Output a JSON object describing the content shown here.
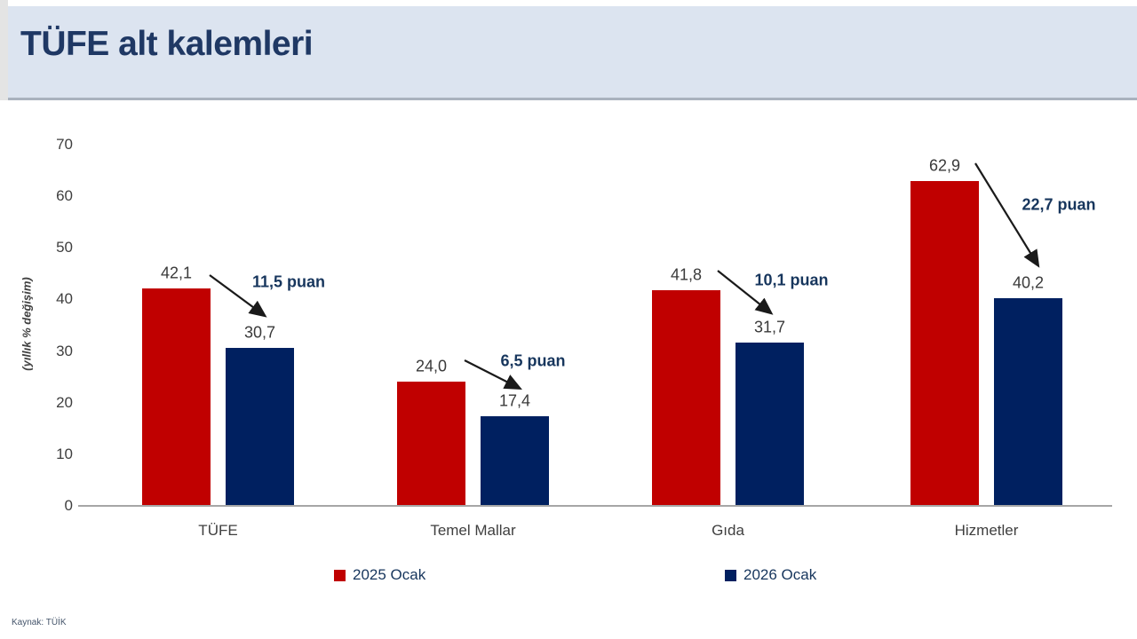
{
  "header": {
    "title": "TÜFE alt kalemleri"
  },
  "source_note": "Kaynak: TÜİK",
  "colors": {
    "series_2025": "#c00000",
    "series_2026": "#002060",
    "header_bg": "#dce4f0",
    "title_text": "#1f3864",
    "axis_line": "#a6a6a6",
    "arrow": "#1a1a1a"
  },
  "legend": [
    {
      "label": "2025 Ocak",
      "color": "#c00000"
    },
    {
      "label": "2026 Ocak",
      "color": "#002060"
    }
  ],
  "chart_data": {
    "type": "bar",
    "title": "TÜFE alt kalemleri",
    "xlabel": "",
    "ylabel": "(yıllık % değişim)",
    "ylim": [
      0,
      70
    ],
    "yticks": [
      0,
      10,
      20,
      30,
      40,
      50,
      60,
      70
    ],
    "grid": false,
    "legend_position": "bottom",
    "categories": [
      "TÜFE",
      "Temel Mallar",
      "Gıda",
      "Hizmetler"
    ],
    "series": [
      {
        "name": "2025 Ocak",
        "color": "#c00000",
        "values": [
          42.1,
          24.0,
          41.8,
          62.9
        ],
        "labels": [
          "42,1",
          "24,0",
          "41,8",
          "62,9"
        ]
      },
      {
        "name": "2026 Ocak",
        "color": "#002060",
        "values": [
          30.7,
          17.4,
          31.7,
          40.2
        ],
        "labels": [
          "30,7",
          "17,4",
          "31,7",
          "40,2"
        ]
      }
    ],
    "annotations": [
      {
        "category": "TÜFE",
        "label": "11,5 puan"
      },
      {
        "category": "Temel Mallar",
        "label": "6,5 puan"
      },
      {
        "category": "Gıda",
        "label": "10,1 puan"
      },
      {
        "category": "Hizmetler",
        "label": "22,7 puan"
      }
    ]
  }
}
